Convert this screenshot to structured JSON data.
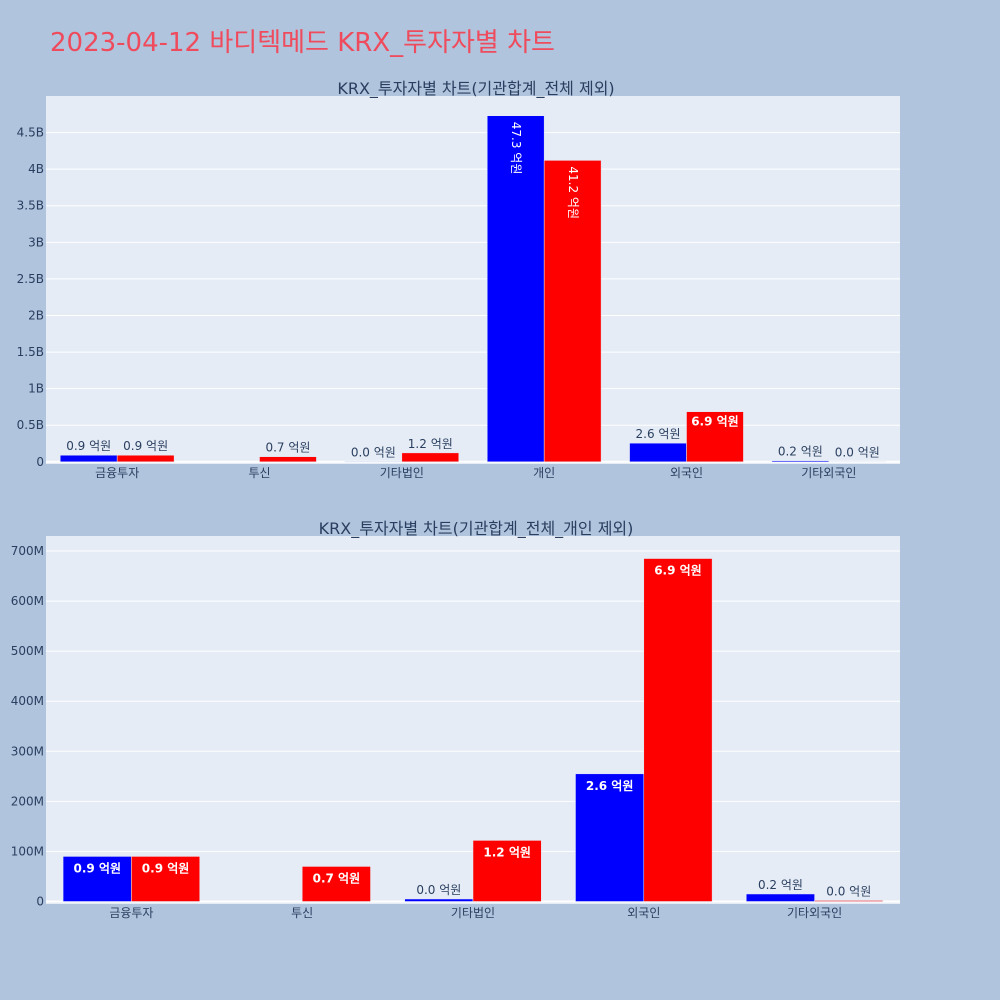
{
  "title": "2023-04-12 바디텍메드 KRX_투자자별 차트",
  "colors": {
    "buy": "#0000ff",
    "sell": "#ff0000",
    "plot_bg": "#e5ecf6",
    "page_bg": "#b0c4de",
    "title": "#ef4b5c",
    "text": "#2a3f5f"
  },
  "chart_data": [
    {
      "type": "bar",
      "title": "KRX_투자자별 차트(기관합계_전체 제외)",
      "categories": [
        "금융투자",
        "투신",
        "기타법인",
        "개인",
        "외국인",
        "기타외국인"
      ],
      "ylim": [
        -30000000,
        5000000000
      ],
      "y_ticks": [
        0,
        500000000,
        1000000000,
        1500000000,
        2000000000,
        2500000000,
        3000000000,
        3500000000,
        4000000000,
        4500000000
      ],
      "y_tick_labels": [
        "0",
        "0.5B",
        "1B",
        "1.5B",
        "2B",
        "2.5B",
        "3B",
        "3.5B",
        "4B",
        "4.5B"
      ],
      "series": [
        {
          "color": "#0000ff",
          "values": [
            90000000,
            0,
            5000000,
            4730000000,
            255000000,
            15000000
          ],
          "labels": [
            "0.9 억원",
            "",
            "0.0 억원",
            "47.3 억원",
            "2.6 억원",
            "0.2 억원"
          ]
        },
        {
          "color": "#ff0000",
          "values": [
            90000000,
            70000000,
            122000000,
            4120000000,
            685000000,
            2000000
          ],
          "labels": [
            "0.9 억원",
            "0.7 억원",
            "1.2 억원",
            "41.2 억원",
            "6.9 억원",
            "0.0 억원"
          ]
        }
      ]
    },
    {
      "type": "bar",
      "title": "KRX_투자자별 차트(기관합계_전체_개인 제외)",
      "categories": [
        "금융투자",
        "투신",
        "기타법인",
        "외국인",
        "기타외국인"
      ],
      "ylim": [
        -5000000,
        730000000
      ],
      "y_ticks": [
        0,
        100000000,
        200000000,
        300000000,
        400000000,
        500000000,
        600000000,
        700000000
      ],
      "y_tick_labels": [
        "0",
        "100M",
        "200M",
        "300M",
        "400M",
        "500M",
        "600M",
        "700M"
      ],
      "series": [
        {
          "color": "#0000ff",
          "values": [
            90000000,
            0,
            5000000,
            255000000,
            15000000
          ],
          "labels": [
            "0.9 억원",
            "",
            "0.0 억원",
            "2.6 억원",
            "0.2 억원"
          ]
        },
        {
          "color": "#ff0000",
          "values": [
            90000000,
            70000000,
            122000000,
            685000000,
            2000000
          ],
          "labels": [
            "0.9 억원",
            "0.7 억원",
            "1.2 억원",
            "6.9 억원",
            "0.0 억원"
          ]
        }
      ]
    }
  ]
}
